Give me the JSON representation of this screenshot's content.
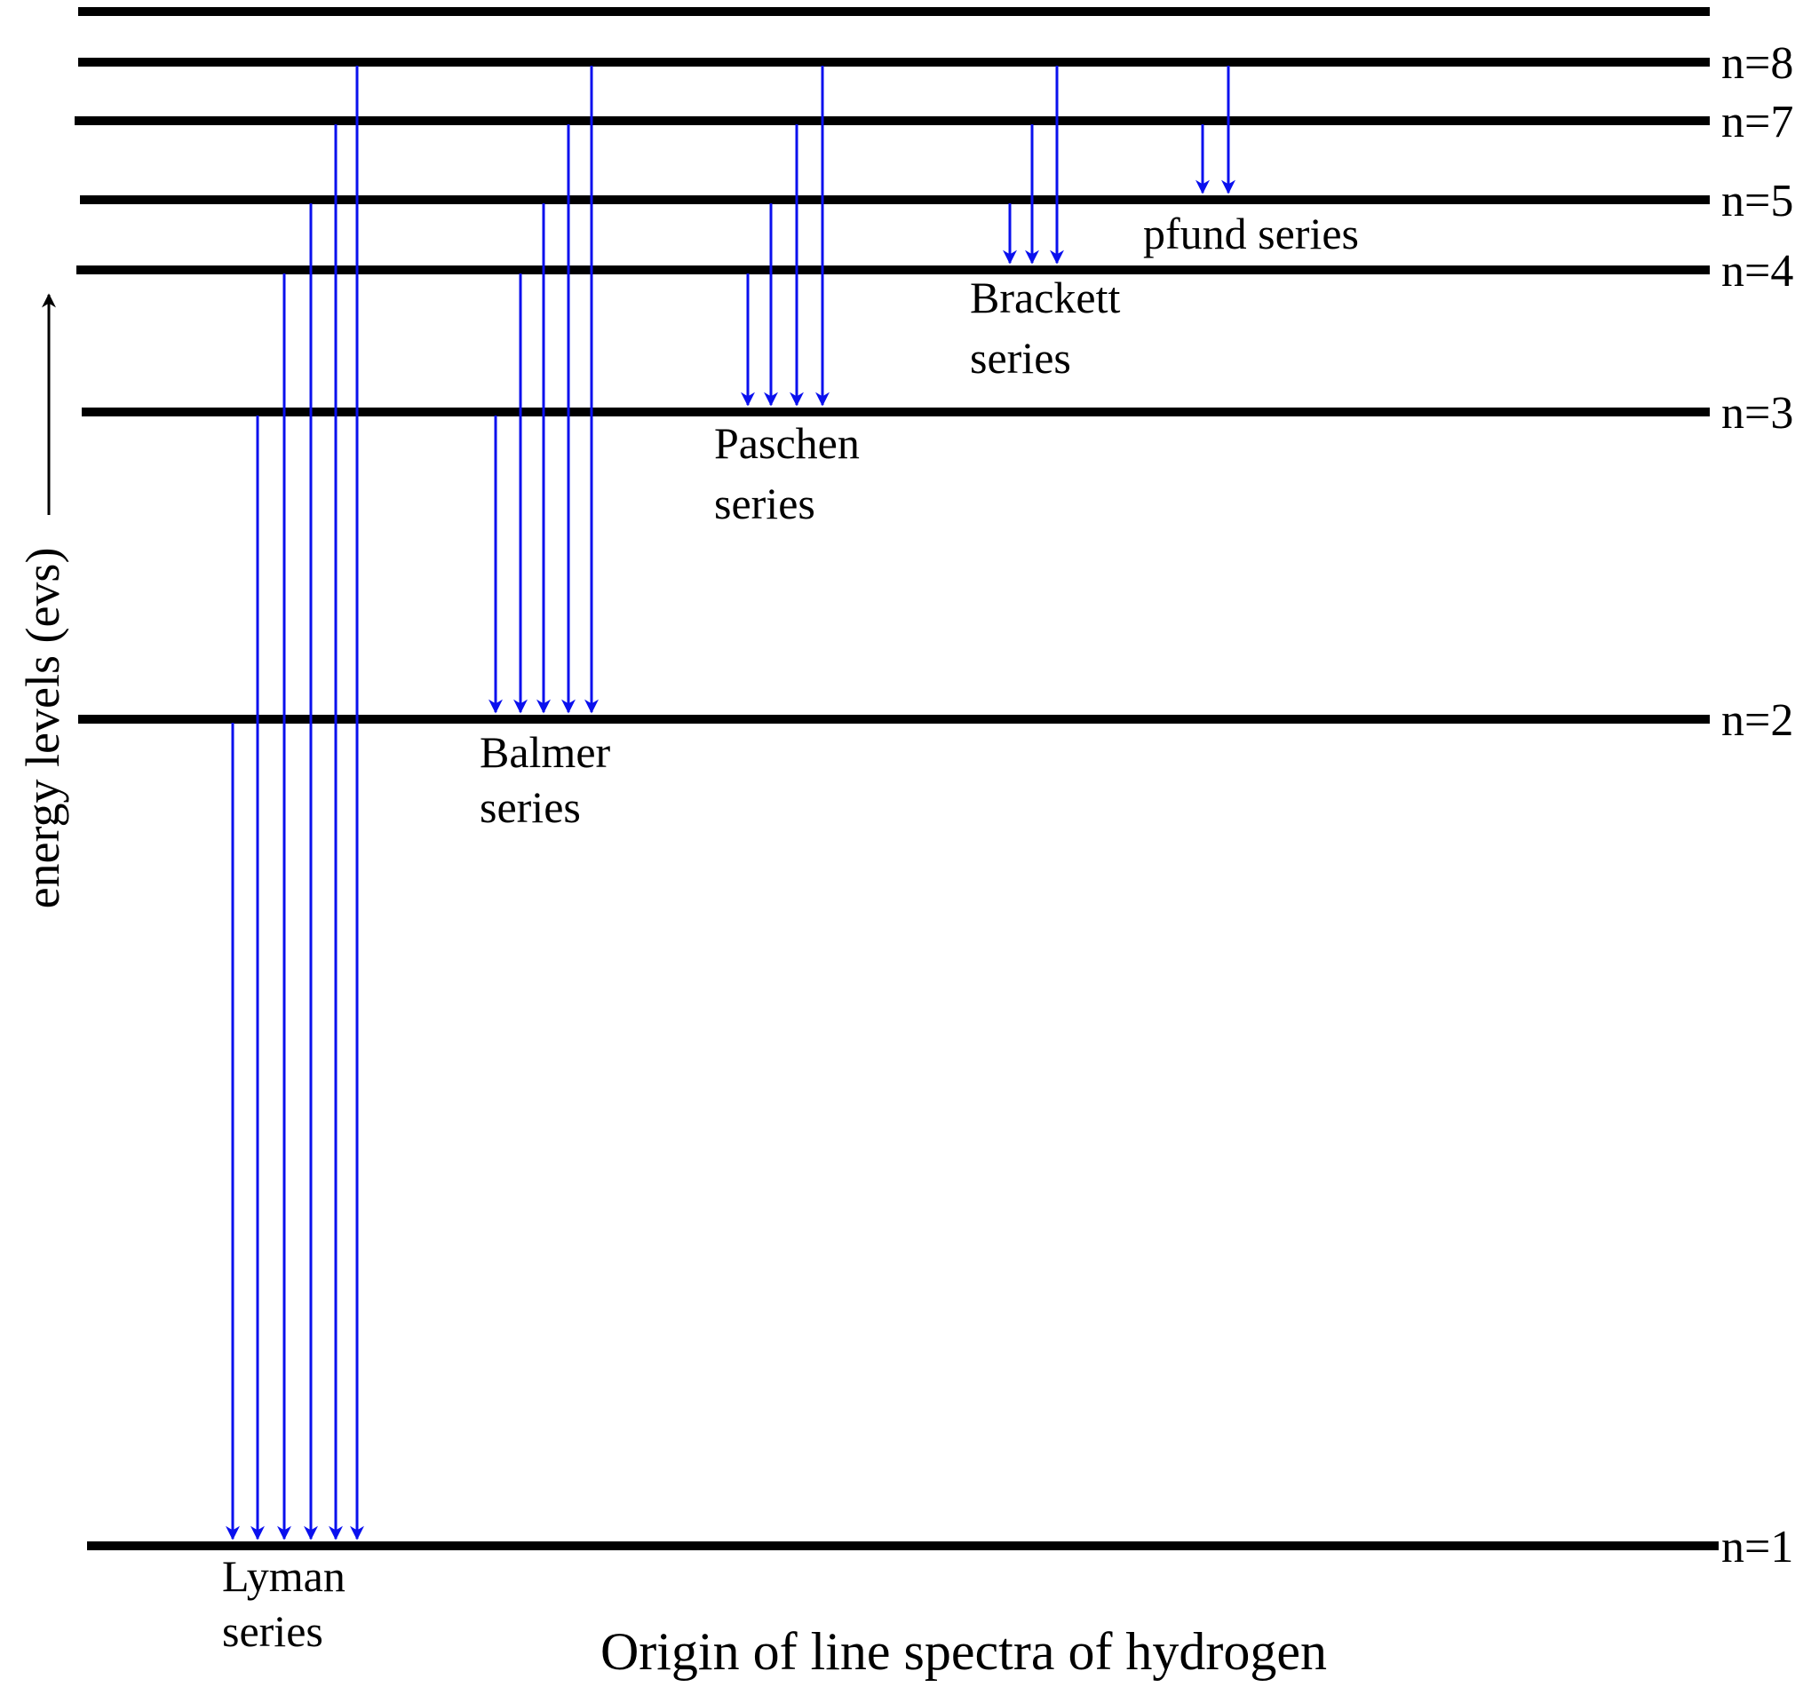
{
  "title": "Origin of line spectra of hydrogen",
  "axis_label": "energy levels (evs)",
  "colors": {
    "level": "#000000",
    "transition": "#0a10ee",
    "text": "#000000"
  },
  "levels": [
    {
      "id": "top",
      "label": ""
    },
    {
      "id": "n8",
      "label": "n=8"
    },
    {
      "id": "n7",
      "label": "n=7"
    },
    {
      "id": "n5",
      "label": "n=5"
    },
    {
      "id": "n4",
      "label": "n=4"
    },
    {
      "id": "n3",
      "label": "n=3"
    },
    {
      "id": "n2",
      "label": "n=2"
    },
    {
      "id": "n1",
      "label": "n=1"
    }
  ],
  "series": [
    {
      "id": "lyman",
      "label_lines": [
        "Lyman",
        "series"
      ],
      "to": "n1",
      "from": [
        "n2",
        "n3",
        "n4",
        "n5",
        "n7",
        "n8"
      ]
    },
    {
      "id": "balmer",
      "label_lines": [
        "Balmer",
        "series"
      ],
      "to": "n2",
      "from": [
        "n3",
        "n4",
        "n5",
        "n7",
        "n8"
      ]
    },
    {
      "id": "paschen",
      "label_lines": [
        "Paschen",
        "series"
      ],
      "to": "n3",
      "from": [
        "n4",
        "n5",
        "n7",
        "n8"
      ]
    },
    {
      "id": "brackett",
      "label_lines": [
        "Brackett",
        "series"
      ],
      "to": "n4",
      "from": [
        "n5",
        "n7",
        "n8"
      ]
    },
    {
      "id": "pfund",
      "label_lines": [
        "pfund series"
      ],
      "to": "n5",
      "from": [
        "n7",
        "n8"
      ]
    }
  ]
}
